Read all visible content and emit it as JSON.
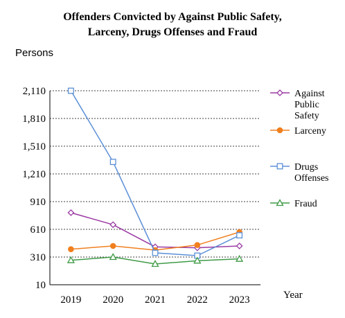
{
  "chart_data": {
    "type": "line",
    "title_line1": "Offenders Convicted by Against Public Safety,",
    "title_line2": "Larceny, Drugs Offenses and Fraud",
    "ylabel": "Persons",
    "xlabel": "Year",
    "categories": [
      "2019",
      "2020",
      "2021",
      "2022",
      "2023"
    ],
    "ylim": [
      10,
      2110
    ],
    "yticks": [
      "10",
      "310",
      "610",
      "910",
      "1,210",
      "1,510",
      "1,810",
      "2,110"
    ],
    "grid": true,
    "legend_position": "right",
    "series": [
      {
        "name": "Against Public Safety",
        "legend_lines": [
          "Against",
          "Public",
          "Safety"
        ],
        "values": [
          790,
          660,
          420,
          410,
          430
        ],
        "color": "#9b3aa3",
        "marker": "diamond-open"
      },
      {
        "name": "Larceny",
        "legend_lines": [
          "Larceny"
        ],
        "values": [
          395,
          430,
          385,
          440,
          580
        ],
        "color": "#f07f1e",
        "marker": "circle-filled"
      },
      {
        "name": "Drugs Offenses",
        "legend_lines": [
          "Drugs",
          "Offenses"
        ],
        "values": [
          2110,
          1340,
          355,
          325,
          545
        ],
        "color": "#5b8fd6",
        "marker": "square-open"
      },
      {
        "name": "Fraud",
        "legend_lines": [
          "Fraud"
        ],
        "values": [
          275,
          310,
          235,
          270,
          290
        ],
        "color": "#3f9a46",
        "marker": "triangle-open"
      }
    ]
  }
}
